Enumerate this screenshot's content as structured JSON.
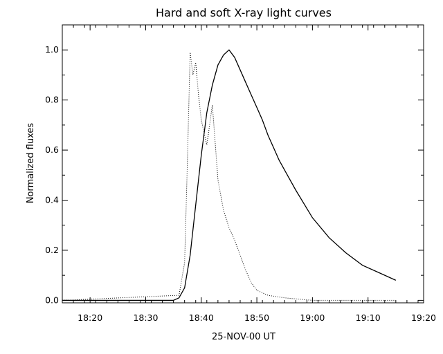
{
  "chart_data": {
    "type": "line",
    "title": "Hard and soft X-ray light curves",
    "xlabel": "25-NOV-00  UT",
    "ylabel": "Normalized fluxes",
    "xlim": [
      "18:15",
      "19:20"
    ],
    "ylim": [
      -0.01,
      1.1
    ],
    "x_ticks": [
      "18:20",
      "18:30",
      "18:40",
      "18:50",
      "19:00",
      "19:10",
      "19:20"
    ],
    "y_ticks": [
      "0.0",
      "0.2",
      "0.4",
      "0.6",
      "0.8",
      "1.0"
    ],
    "grid": false,
    "series": [
      {
        "style": "solid",
        "x": [
          "18:15",
          "18:35",
          "18:36",
          "18:37",
          "18:38",
          "18:39",
          "18:40",
          "18:41",
          "18:42",
          "18:43",
          "18:44",
          "18:45",
          "18:46",
          "18:47",
          "18:48",
          "18:49",
          "18:50",
          "18:51",
          "18:52",
          "18:53",
          "18:54",
          "18:55",
          "18:57",
          "19:00",
          "19:03",
          "19:06",
          "19:09",
          "19:12",
          "19:15"
        ],
        "y": [
          0.0,
          0.0,
          0.01,
          0.05,
          0.18,
          0.38,
          0.58,
          0.75,
          0.86,
          0.94,
          0.98,
          1.0,
          0.97,
          0.92,
          0.87,
          0.82,
          0.77,
          0.72,
          0.66,
          0.61,
          0.56,
          0.52,
          0.44,
          0.33,
          0.25,
          0.19,
          0.14,
          0.11,
          0.08
        ]
      },
      {
        "style": "dotted",
        "x": [
          "18:15",
          "18:36",
          "18:37",
          "18:37:30",
          "18:38",
          "18:38:30",
          "18:39",
          "18:39:30",
          "18:40",
          "18:41",
          "18:42",
          "18:43",
          "18:44",
          "18:45",
          "18:46",
          "18:47",
          "18:48",
          "18:49",
          "18:50",
          "18:52",
          "18:55",
          "19:00",
          "19:05",
          "19:10",
          "19:15"
        ],
        "y": [
          0.0,
          0.02,
          0.15,
          0.55,
          0.99,
          0.9,
          0.95,
          0.82,
          0.72,
          0.62,
          0.78,
          0.48,
          0.36,
          0.29,
          0.24,
          0.18,
          0.12,
          0.07,
          0.04,
          0.02,
          0.01,
          0.0,
          0.0,
          0.0,
          0.0
        ]
      }
    ]
  }
}
